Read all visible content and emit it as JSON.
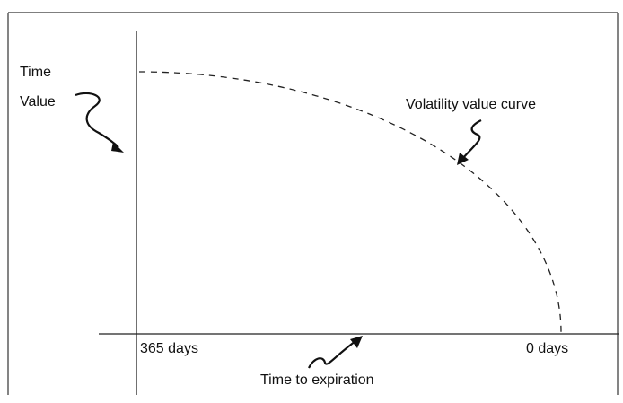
{
  "labels": {
    "y_axis": [
      "Time",
      "Value"
    ],
    "curve": "Volatility value curve",
    "x_start": "365 days",
    "x_end": "0 days",
    "x_axis": "Time to expiration"
  }
}
